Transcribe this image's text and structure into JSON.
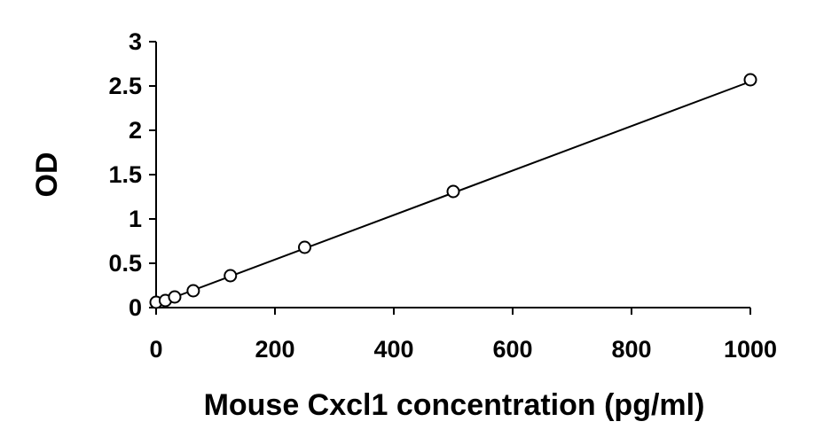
{
  "chart_data": {
    "type": "scatter",
    "title": "",
    "xlabel": "Mouse Cxcl1 concentration (pg/ml)",
    "ylabel": "OD",
    "xlim": [
      0,
      1000
    ],
    "ylim": [
      0,
      3
    ],
    "x_ticks": [
      0,
      200,
      400,
      600,
      800,
      1000
    ],
    "y_ticks": [
      0,
      0.5,
      1,
      1.5,
      2,
      2.5,
      3
    ],
    "x_tick_labels": [
      "0",
      "200",
      "400",
      "600",
      "800",
      "1000"
    ],
    "y_tick_labels": [
      "0",
      "0.5",
      "1",
      "1.5",
      "2",
      "2.5",
      "3"
    ],
    "grid": false,
    "legend": "none",
    "series": [
      {
        "marker": "open-circle",
        "x": [
          0,
          15.6,
          31.3,
          62.5,
          125,
          250,
          500,
          1000
        ],
        "y": [
          0.06,
          0.08,
          0.12,
          0.19,
          0.36,
          0.68,
          1.31,
          2.57
        ]
      }
    ],
    "trendline": {
      "type": "linear",
      "x": [
        0,
        1000
      ],
      "y": [
        0.04,
        2.55
      ]
    },
    "colors": {
      "axis": "#000000",
      "marker_stroke": "#000000",
      "line": "#000000"
    }
  }
}
